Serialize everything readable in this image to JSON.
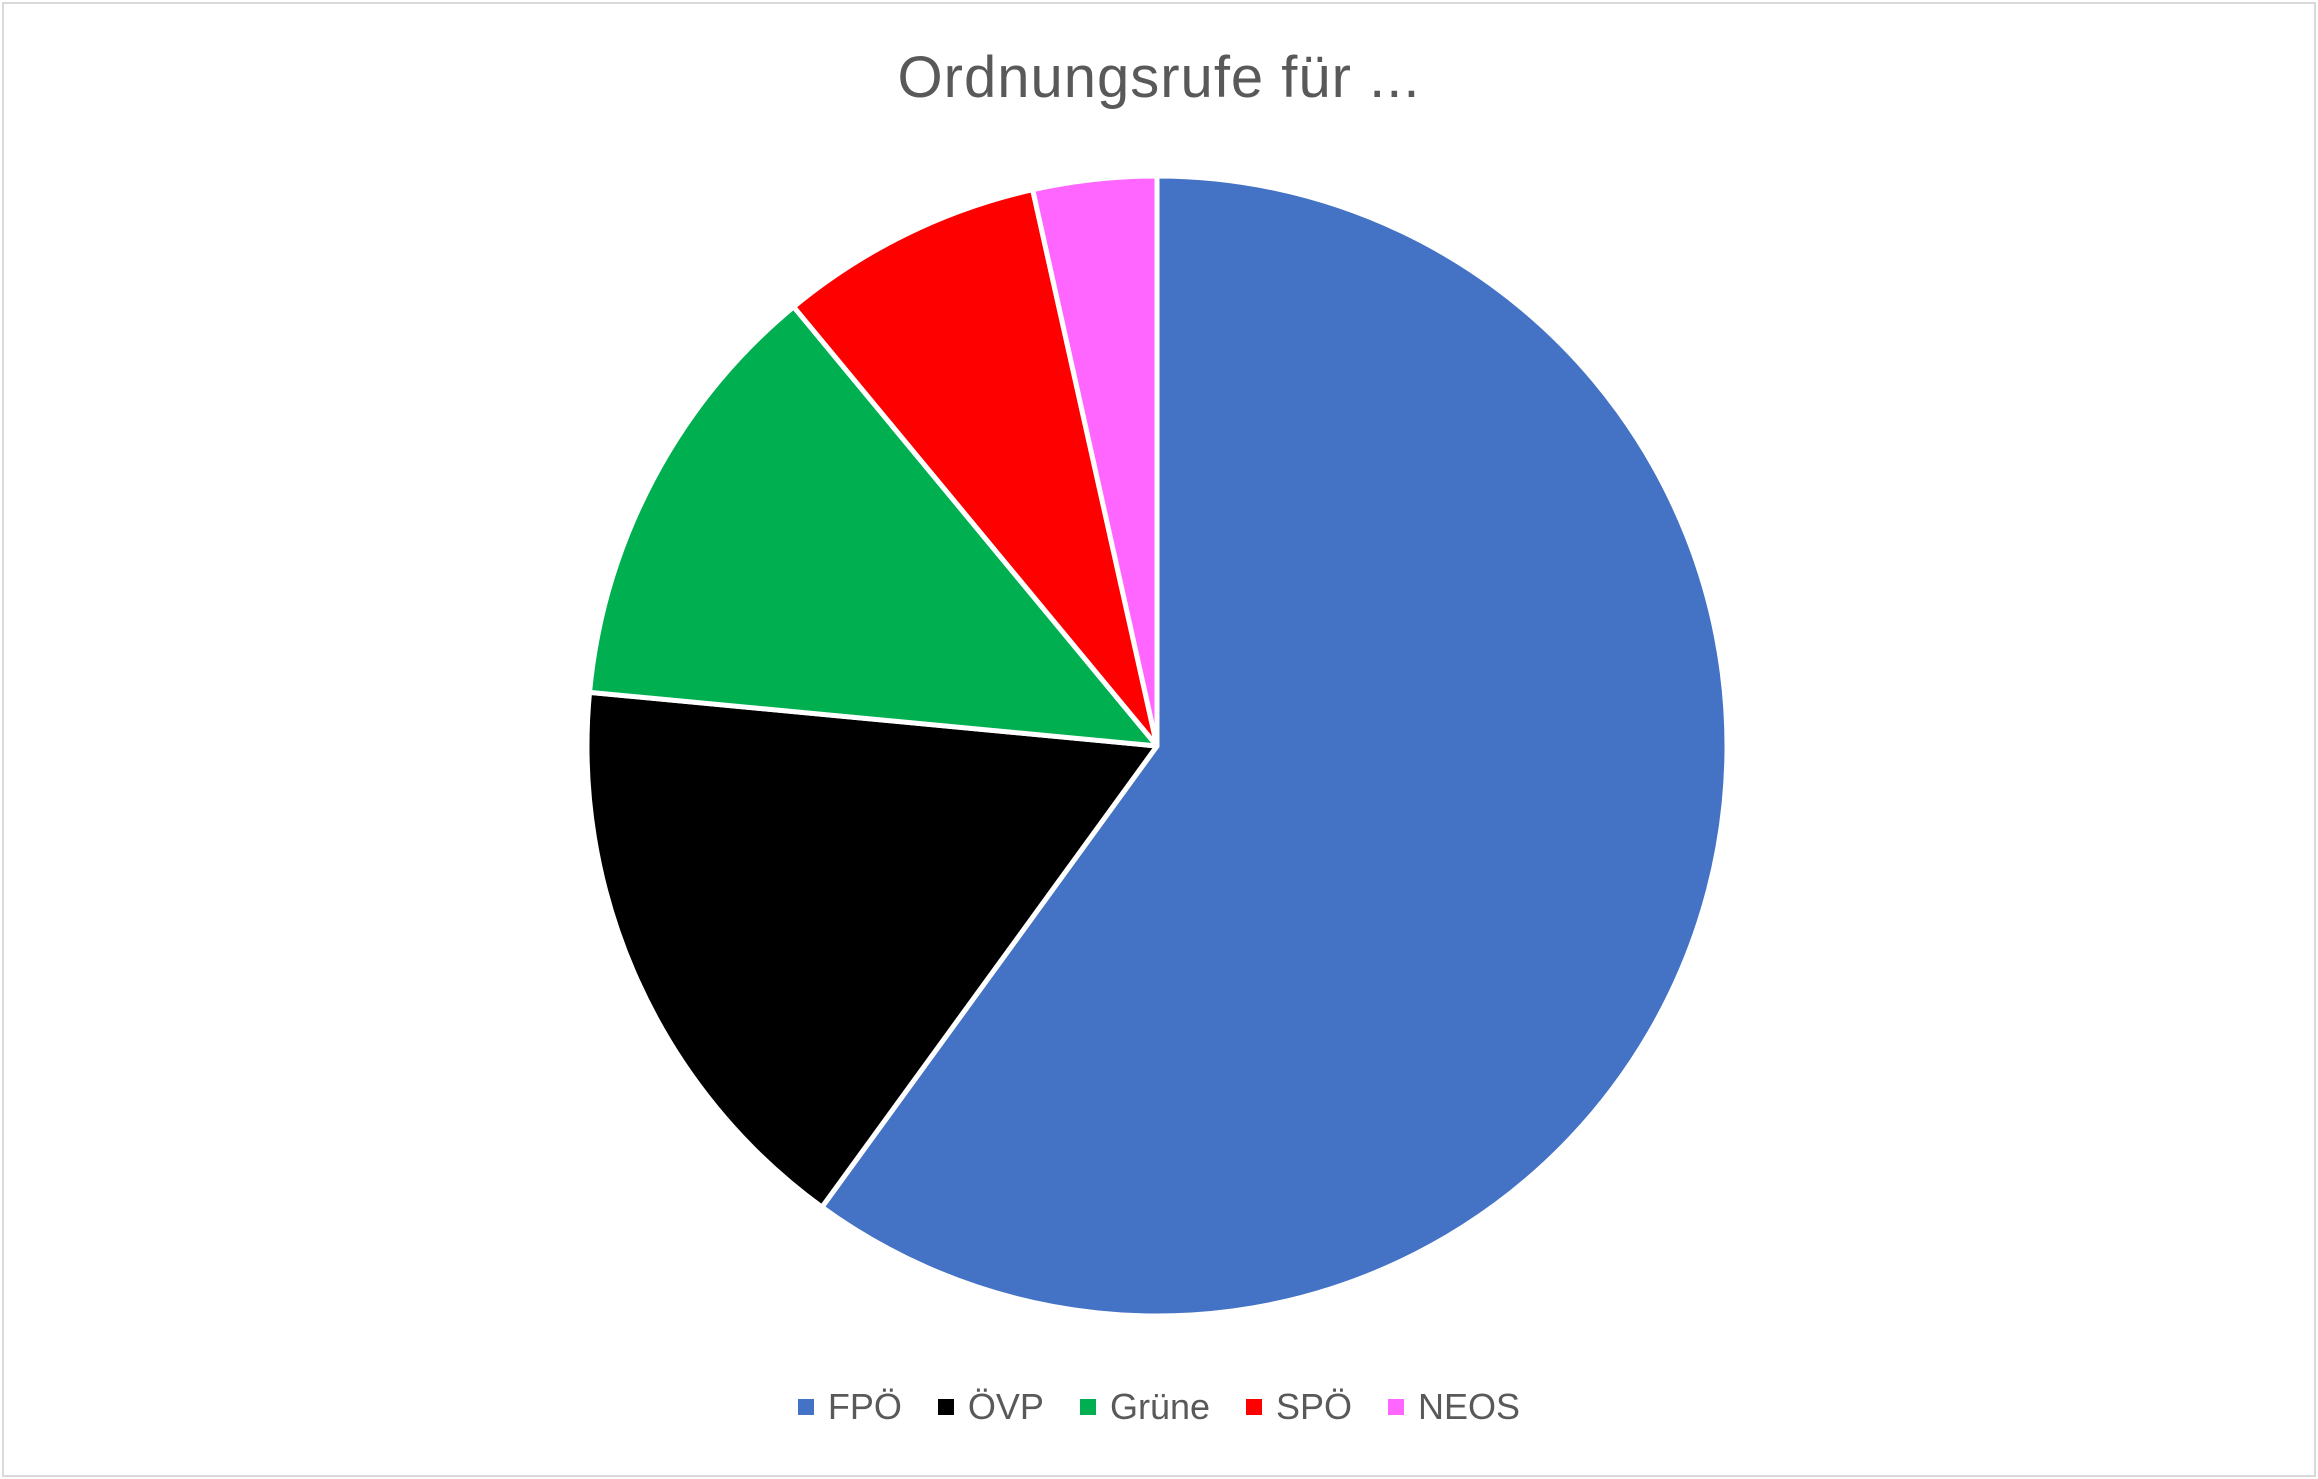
{
  "chart_data": {
    "type": "pie",
    "title": "Ordnungsrufe für ...",
    "categories": [
      "FPÖ",
      "ÖVP",
      "Grüne",
      "SPÖ",
      "NEOS"
    ],
    "values": [
      60.0,
      16.5,
      12.5,
      7.5,
      3.5
    ],
    "colors": [
      "#4472c4",
      "#000000",
      "#00b050",
      "#ff0000",
      "#ff66ff"
    ],
    "legend_position": "bottom"
  }
}
